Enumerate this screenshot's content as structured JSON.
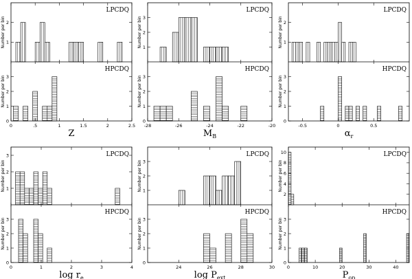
{
  "chart_data": [
    {
      "type": "histogram",
      "xlabel": "Z",
      "ylabel": "Number per bin",
      "xlim": [
        0,
        2.5
      ],
      "xticks": [
        0,
        0.5,
        1,
        1.5,
        2,
        2.5
      ],
      "xtick_labels": [
        "0",
        ".5",
        "1",
        "1.5",
        "2",
        "2.5"
      ],
      "bin_width": 0.1,
      "top": {
        "label": "LPCDQ",
        "ylim": [
          0,
          3
        ],
        "yticks": [
          1,
          2
        ],
        "bins": [
          {
            "x": 0.1,
            "v": 1
          },
          {
            "x": 0.2,
            "v": 2
          },
          {
            "x": 0.5,
            "v": 1
          },
          {
            "x": 0.6,
            "v": 2
          },
          {
            "x": 0.7,
            "v": 1
          },
          {
            "x": 1.2,
            "v": 1
          },
          {
            "x": 1.3,
            "v": 1
          },
          {
            "x": 1.4,
            "v": 1
          },
          {
            "x": 1.8,
            "v": 1
          },
          {
            "x": 2.2,
            "v": 1
          }
        ]
      },
      "bottom": {
        "label": "HPCDQ",
        "ylim": [
          0,
          4
        ],
        "yticks": [
          0,
          1,
          2,
          3
        ],
        "bins": [
          {
            "x": 0.05,
            "v": 1
          },
          {
            "x": 0.25,
            "v": 1
          },
          {
            "x": 0.45,
            "v": 2
          },
          {
            "x": 0.65,
            "v": 1
          },
          {
            "x": 0.75,
            "v": 1
          },
          {
            "x": 0.85,
            "v": 3
          }
        ]
      }
    },
    {
      "type": "histogram",
      "xlabel": "M_B",
      "ylabel": "Number per bin",
      "xlim": [
        -28,
        -20
      ],
      "xticks": [
        -28,
        -26,
        -24,
        -22,
        -20
      ],
      "xtick_labels": [
        "-28",
        "-26",
        "-24",
        "-22",
        "-20"
      ],
      "bin_width": 0.4,
      "top": {
        "label": "LPCDQ",
        "ylim": [
          0,
          4
        ],
        "yticks": [
          1,
          2,
          3
        ],
        "bins": [
          {
            "x": -27.2,
            "v": 1
          },
          {
            "x": -26.4,
            "v": 2
          },
          {
            "x": -26.0,
            "v": 3
          },
          {
            "x": -25.6,
            "v": 3
          },
          {
            "x": -25.2,
            "v": 3
          },
          {
            "x": -24.4,
            "v": 1
          },
          {
            "x": -24.0,
            "v": 1
          },
          {
            "x": -23.6,
            "v": 1
          },
          {
            "x": -23.2,
            "v": 1
          }
        ]
      },
      "bottom": {
        "label": "HPCDQ",
        "ylim": [
          0,
          4
        ],
        "yticks": [
          0,
          1,
          2,
          3
        ],
        "bins": [
          {
            "x": -27.6,
            "v": 1
          },
          {
            "x": -27.2,
            "v": 1
          },
          {
            "x": -26.8,
            "v": 1
          },
          {
            "x": -25.2,
            "v": 2
          },
          {
            "x": -24.4,
            "v": 1
          },
          {
            "x": -23.6,
            "v": 3
          },
          {
            "x": -23.2,
            "v": 1
          },
          {
            "x": -22.0,
            "v": 1
          }
        ]
      }
    },
    {
      "type": "histogram",
      "xlabel": "α_r",
      "ylabel": "Number per bin",
      "xlim": [
        -0.7,
        1.0
      ],
      "xticks": [
        -0.5,
        0,
        0.5
      ],
      "xtick_labels": [
        "-0.5",
        "0",
        "0.5"
      ],
      "bin_width": 0.05,
      "top": {
        "label": "LPCDQ",
        "ylim": [
          0,
          3
        ],
        "yticks": [
          1,
          2
        ],
        "bins": [
          {
            "x": -0.65,
            "v": 1
          },
          {
            "x": -0.6,
            "v": 1
          },
          {
            "x": -0.55,
            "v": 1
          },
          {
            "x": -0.45,
            "v": 1
          },
          {
            "x": -0.3,
            "v": 1
          },
          {
            "x": -0.2,
            "v": 1
          },
          {
            "x": -0.15,
            "v": 1
          },
          {
            "x": -0.1,
            "v": 1
          },
          {
            "x": -0.05,
            "v": 1
          },
          {
            "x": 0.0,
            "v": 2
          },
          {
            "x": 0.05,
            "v": 1
          },
          {
            "x": 0.15,
            "v": 1
          },
          {
            "x": 0.2,
            "v": 1
          }
        ]
      },
      "bottom": {
        "label": "HPCDQ",
        "ylim": [
          0,
          4
        ],
        "yticks": [
          0,
          1,
          2,
          3
        ],
        "bins": [
          {
            "x": -0.25,
            "v": 1
          },
          {
            "x": 0.0,
            "v": 3
          },
          {
            "x": 0.1,
            "v": 1
          },
          {
            "x": 0.15,
            "v": 1
          },
          {
            "x": 0.25,
            "v": 1
          },
          {
            "x": 0.35,
            "v": 1
          },
          {
            "x": 0.55,
            "v": 1
          },
          {
            "x": 0.85,
            "v": 1
          }
        ]
      }
    },
    {
      "type": "histogram",
      "xlabel": "log r_e",
      "ylabel": "Number per bin",
      "xlim": [
        0,
        4
      ],
      "xticks": [
        0,
        1,
        2,
        3,
        4
      ],
      "xtick_labels": [
        "0",
        "1",
        "2",
        "3",
        "4"
      ],
      "bin_width": 0.15,
      "top": {
        "label": "LPCDQ",
        "ylim": [
          0,
          3.5
        ],
        "yticks": [
          1,
          2,
          3
        ],
        "bins": [
          {
            "x": 0.15,
            "v": 2
          },
          {
            "x": 0.3,
            "v": 2
          },
          {
            "x": 0.45,
            "v": 1
          },
          {
            "x": 0.6,
            "v": 1
          },
          {
            "x": 0.75,
            "v": 2
          },
          {
            "x": 0.9,
            "v": 1
          },
          {
            "x": 1.05,
            "v": 2
          },
          {
            "x": 1.2,
            "v": 1
          },
          {
            "x": 3.45,
            "v": 1
          }
        ]
      },
      "bottom": {
        "label": "HPCDQ",
        "ylim": [
          0,
          4
        ],
        "yticks": [
          0,
          1,
          2,
          3
        ],
        "bins": [
          {
            "x": 0.25,
            "v": 3
          },
          {
            "x": 0.4,
            "v": 2
          },
          {
            "x": 0.75,
            "v": 3
          },
          {
            "x": 0.9,
            "v": 2
          },
          {
            "x": 1.2,
            "v": 1
          }
        ]
      }
    },
    {
      "type": "histogram",
      "xlabel": "log P_ext",
      "ylabel": "Number per bin",
      "xlim": [
        22,
        30
      ],
      "xticks": [
        24,
        26,
        28,
        30
      ],
      "xtick_labels": [
        "24",
        "26",
        "28",
        "30"
      ],
      "bin_width": 0.4,
      "top": {
        "label": "LPCDQ",
        "ylim": [
          0,
          4
        ],
        "yticks": [
          1,
          2,
          3
        ],
        "bins": [
          {
            "x": 24.0,
            "v": 1
          },
          {
            "x": 25.6,
            "v": 2
          },
          {
            "x": 26.0,
            "v": 2
          },
          {
            "x": 26.4,
            "v": 1
          },
          {
            "x": 26.8,
            "v": 2
          },
          {
            "x": 27.2,
            "v": 2
          },
          {
            "x": 27.6,
            "v": 3
          }
        ]
      },
      "bottom": {
        "label": "HPCDQ",
        "ylim": [
          0,
          4
        ],
        "yticks": [
          0,
          1,
          2,
          3
        ],
        "bins": [
          {
            "x": 25.6,
            "v": 2
          },
          {
            "x": 26.0,
            "v": 1
          },
          {
            "x": 27.0,
            "v": 2
          },
          {
            "x": 28.0,
            "v": 3
          },
          {
            "x": 28.4,
            "v": 2
          }
        ]
      }
    },
    {
      "type": "histogram",
      "xlabel": "P_op",
      "ylabel": "Number per bin",
      "xlim": [
        0,
        45
      ],
      "xticks": [
        0,
        10,
        20,
        30,
        40
      ],
      "xtick_labels": [
        "0",
        "10",
        "20",
        "30",
        "40"
      ],
      "bin_width": 1,
      "top": {
        "label": "LPCDQ",
        "ylim": [
          0,
          11
        ],
        "yticks": [
          2,
          4,
          6,
          8,
          10
        ],
        "bins": [
          {
            "x": 0,
            "v": 10
          },
          {
            "x": 1,
            "v": 2
          }
        ]
      },
      "bottom": {
        "label": "HPCDQ",
        "ylim": [
          0,
          4
        ],
        "yticks": [
          0,
          1,
          2,
          3
        ],
        "bins": [
          {
            "x": 4,
            "v": 1
          },
          {
            "x": 5,
            "v": 1
          },
          {
            "x": 6,
            "v": 1
          },
          {
            "x": 19,
            "v": 1
          },
          {
            "x": 28,
            "v": 2
          },
          {
            "x": 44,
            "v": 2
          }
        ]
      }
    }
  ]
}
